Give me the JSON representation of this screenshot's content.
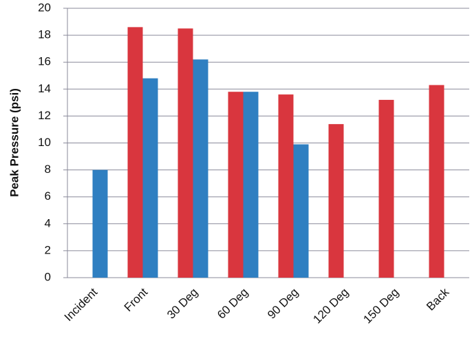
{
  "chart_data": {
    "type": "bar",
    "y_label": "Peak Pressure (psi)",
    "categories": [
      "Incident",
      "Front",
      "30 Deg",
      "60 Deg",
      "90 Deg",
      "120 Deg",
      "150 Deg",
      "Back"
    ],
    "series": [
      {
        "color": "#d9363e",
        "values": [
          null,
          18.6,
          18.5,
          13.8,
          13.6,
          11.4,
          13.2,
          14.3
        ]
      },
      {
        "color": "#2f7fc1",
        "values": [
          8.0,
          14.8,
          16.2,
          13.8,
          9.9,
          null,
          null,
          null
        ]
      }
    ],
    "ylim": [
      0,
      20
    ],
    "yticks": [
      0,
      2,
      4,
      6,
      8,
      10,
      12,
      14,
      16,
      18,
      20
    ],
    "grid": true
  }
}
